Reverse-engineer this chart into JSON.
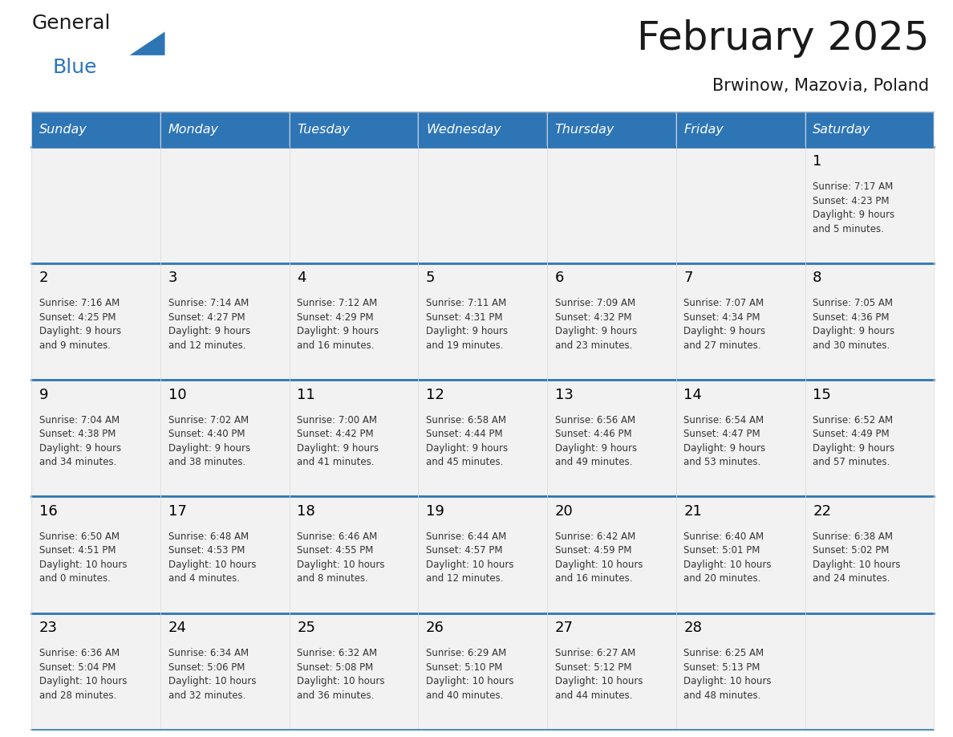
{
  "title": "February 2025",
  "subtitle": "Brwinow, Mazovia, Poland",
  "days_of_week": [
    "Sunday",
    "Monday",
    "Tuesday",
    "Wednesday",
    "Thursday",
    "Friday",
    "Saturday"
  ],
  "header_bg_color": "#2E75B6",
  "header_text_color": "#FFFFFF",
  "border_color": "#2E75B6",
  "cell_bg_color": "#F2F2F2",
  "day_number_color": "#000000",
  "info_text_color": "#333333",
  "title_color": "#1a1a1a",
  "subtitle_color": "#1a1a1a",
  "logo_text_color": "#1a1a1a",
  "logo_blue_color": "#2E75B6",
  "calendar_data": [
    [
      null,
      null,
      null,
      null,
      null,
      null,
      {
        "day": "1",
        "sunrise": "7:17 AM",
        "sunset": "4:23 PM",
        "daylight": "9 hours\nand 5 minutes."
      }
    ],
    [
      {
        "day": "2",
        "sunrise": "7:16 AM",
        "sunset": "4:25 PM",
        "daylight": "9 hours\nand 9 minutes."
      },
      {
        "day": "3",
        "sunrise": "7:14 AM",
        "sunset": "4:27 PM",
        "daylight": "9 hours\nand 12 minutes."
      },
      {
        "day": "4",
        "sunrise": "7:12 AM",
        "sunset": "4:29 PM",
        "daylight": "9 hours\nand 16 minutes."
      },
      {
        "day": "5",
        "sunrise": "7:11 AM",
        "sunset": "4:31 PM",
        "daylight": "9 hours\nand 19 minutes."
      },
      {
        "day": "6",
        "sunrise": "7:09 AM",
        "sunset": "4:32 PM",
        "daylight": "9 hours\nand 23 minutes."
      },
      {
        "day": "7",
        "sunrise": "7:07 AM",
        "sunset": "4:34 PM",
        "daylight": "9 hours\nand 27 minutes."
      },
      {
        "day": "8",
        "sunrise": "7:05 AM",
        "sunset": "4:36 PM",
        "daylight": "9 hours\nand 30 minutes."
      }
    ],
    [
      {
        "day": "9",
        "sunrise": "7:04 AM",
        "sunset": "4:38 PM",
        "daylight": "9 hours\nand 34 minutes."
      },
      {
        "day": "10",
        "sunrise": "7:02 AM",
        "sunset": "4:40 PM",
        "daylight": "9 hours\nand 38 minutes."
      },
      {
        "day": "11",
        "sunrise": "7:00 AM",
        "sunset": "4:42 PM",
        "daylight": "9 hours\nand 41 minutes."
      },
      {
        "day": "12",
        "sunrise": "6:58 AM",
        "sunset": "4:44 PM",
        "daylight": "9 hours\nand 45 minutes."
      },
      {
        "day": "13",
        "sunrise": "6:56 AM",
        "sunset": "4:46 PM",
        "daylight": "9 hours\nand 49 minutes."
      },
      {
        "day": "14",
        "sunrise": "6:54 AM",
        "sunset": "4:47 PM",
        "daylight": "9 hours\nand 53 minutes."
      },
      {
        "day": "15",
        "sunrise": "6:52 AM",
        "sunset": "4:49 PM",
        "daylight": "9 hours\nand 57 minutes."
      }
    ],
    [
      {
        "day": "16",
        "sunrise": "6:50 AM",
        "sunset": "4:51 PM",
        "daylight": "10 hours\nand 0 minutes."
      },
      {
        "day": "17",
        "sunrise": "6:48 AM",
        "sunset": "4:53 PM",
        "daylight": "10 hours\nand 4 minutes."
      },
      {
        "day": "18",
        "sunrise": "6:46 AM",
        "sunset": "4:55 PM",
        "daylight": "10 hours\nand 8 minutes."
      },
      {
        "day": "19",
        "sunrise": "6:44 AM",
        "sunset": "4:57 PM",
        "daylight": "10 hours\nand 12 minutes."
      },
      {
        "day": "20",
        "sunrise": "6:42 AM",
        "sunset": "4:59 PM",
        "daylight": "10 hours\nand 16 minutes."
      },
      {
        "day": "21",
        "sunrise": "6:40 AM",
        "sunset": "5:01 PM",
        "daylight": "10 hours\nand 20 minutes."
      },
      {
        "day": "22",
        "sunrise": "6:38 AM",
        "sunset": "5:02 PM",
        "daylight": "10 hours\nand 24 minutes."
      }
    ],
    [
      {
        "day": "23",
        "sunrise": "6:36 AM",
        "sunset": "5:04 PM",
        "daylight": "10 hours\nand 28 minutes."
      },
      {
        "day": "24",
        "sunrise": "6:34 AM",
        "sunset": "5:06 PM",
        "daylight": "10 hours\nand 32 minutes."
      },
      {
        "day": "25",
        "sunrise": "6:32 AM",
        "sunset": "5:08 PM",
        "daylight": "10 hours\nand 36 minutes."
      },
      {
        "day": "26",
        "sunrise": "6:29 AM",
        "sunset": "5:10 PM",
        "daylight": "10 hours\nand 40 minutes."
      },
      {
        "day": "27",
        "sunrise": "6:27 AM",
        "sunset": "5:12 PM",
        "daylight": "10 hours\nand 44 minutes."
      },
      {
        "day": "28",
        "sunrise": "6:25 AM",
        "sunset": "5:13 PM",
        "daylight": "10 hours\nand 48 minutes."
      },
      null
    ]
  ]
}
